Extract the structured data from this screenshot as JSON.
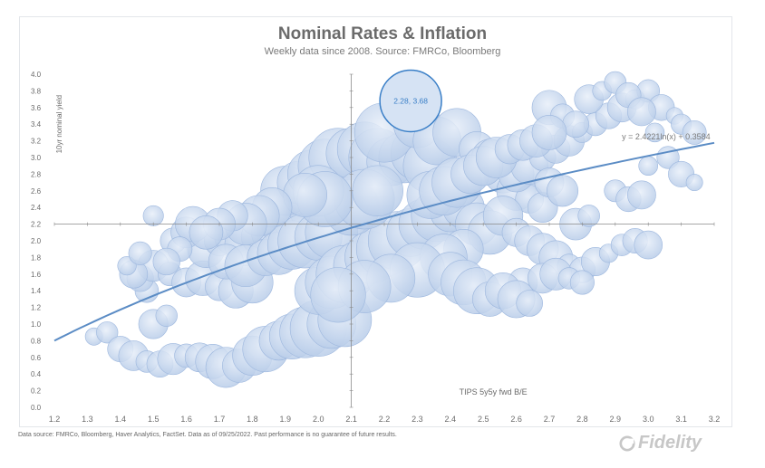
{
  "chart_data": {
    "type": "scatter",
    "title": "Nominal Rates & Inflation",
    "subtitle": "Weekly data since 2008.  Source: FMRCo, Bloomberg",
    "xlabel": "TIPS 5y5y fwd B/E",
    "ylabel": "10yr nominal yield",
    "xlim": [
      1.2,
      3.2
    ],
    "ylim": [
      0.0,
      4.0
    ],
    "x_ticks": [
      "1.2",
      "1.3",
      "1.4",
      "1.5",
      "1.6",
      "1.7",
      "1.8",
      "1.9",
      "2.0",
      "2.1",
      "2.2",
      "2.3",
      "2.4",
      "2.5",
      "2.6",
      "2.7",
      "2.8",
      "2.9",
      "3.0",
      "3.1",
      "3.2"
    ],
    "y_ticks": [
      "0.0",
      "0.2",
      "0.4",
      "0.6",
      "0.8",
      "1.0",
      "1.2",
      "1.4",
      "1.6",
      "1.8",
      "2.0",
      "2.2",
      "2.4",
      "2.6",
      "2.8",
      "3.0",
      "3.2",
      "3.4",
      "3.6",
      "3.8",
      "4.0"
    ],
    "crosshair": {
      "x": 2.1,
      "y": 2.2
    },
    "highlight": {
      "x": 2.28,
      "y": 3.68,
      "label": "2.28,  3.68"
    },
    "trendline": {
      "a": 2.4221,
      "b": 0.3584,
      "equation": "y = 2.4221ln(x) + 0.3584"
    },
    "points": [
      [
        1.32,
        0.85
      ],
      [
        1.36,
        0.9
      ],
      [
        1.4,
        0.7
      ],
      [
        1.44,
        0.62
      ],
      [
        1.48,
        0.55
      ],
      [
        1.52,
        0.52
      ],
      [
        1.56,
        0.58
      ],
      [
        1.6,
        0.62
      ],
      [
        1.64,
        0.6
      ],
      [
        1.68,
        0.55
      ],
      [
        1.72,
        0.48
      ],
      [
        1.76,
        0.5
      ],
      [
        1.8,
        0.62
      ],
      [
        1.84,
        0.7
      ],
      [
        1.88,
        0.8
      ],
      [
        1.92,
        0.85
      ],
      [
        1.96,
        0.9
      ],
      [
        2.0,
        0.95
      ],
      [
        2.04,
        1.0
      ],
      [
        2.08,
        1.05
      ],
      [
        1.5,
        1.0
      ],
      [
        1.54,
        1.1
      ],
      [
        1.48,
        1.4
      ],
      [
        1.46,
        1.55
      ],
      [
        1.5,
        1.7
      ],
      [
        1.55,
        1.6
      ],
      [
        1.6,
        1.5
      ],
      [
        1.65,
        1.55
      ],
      [
        1.7,
        1.45
      ],
      [
        1.75,
        1.4
      ],
      [
        1.8,
        1.5
      ],
      [
        1.66,
        1.9
      ],
      [
        1.7,
        2.0
      ],
      [
        1.74,
        2.05
      ],
      [
        1.78,
        1.95
      ],
      [
        1.82,
        2.05
      ],
      [
        1.86,
        2.1
      ],
      [
        1.9,
        2.2
      ],
      [
        1.94,
        2.3
      ],
      [
        1.98,
        2.4
      ],
      [
        1.72,
        1.75
      ],
      [
        1.78,
        1.7
      ],
      [
        1.84,
        1.8
      ],
      [
        1.88,
        1.85
      ],
      [
        1.92,
        1.95
      ],
      [
        1.96,
        2.0
      ],
      [
        2.0,
        2.05
      ],
      [
        2.04,
        2.1
      ],
      [
        1.9,
        2.6
      ],
      [
        1.94,
        2.7
      ],
      [
        1.98,
        2.8
      ],
      [
        2.02,
        2.9
      ],
      [
        2.06,
        3.0
      ],
      [
        2.1,
        3.05
      ],
      [
        2.14,
        3.1
      ],
      [
        2.18,
        3.0
      ],
      [
        2.22,
        2.95
      ],
      [
        2.26,
        3.0
      ],
      [
        2.3,
        3.05
      ],
      [
        2.34,
        2.9
      ],
      [
        2.0,
        1.4
      ],
      [
        2.04,
        1.5
      ],
      [
        2.08,
        1.6
      ],
      [
        2.12,
        1.7
      ],
      [
        2.16,
        1.8
      ],
      [
        2.2,
        1.9
      ],
      [
        2.24,
        2.0
      ],
      [
        2.28,
        2.1
      ],
      [
        2.32,
        2.2
      ],
      [
        2.36,
        2.3
      ],
      [
        2.4,
        2.35
      ],
      [
        2.44,
        2.4
      ],
      [
        2.48,
        2.2
      ],
      [
        2.52,
        2.1
      ],
      [
        2.44,
        1.9
      ],
      [
        2.38,
        1.8
      ],
      [
        2.3,
        1.65
      ],
      [
        2.22,
        1.55
      ],
      [
        2.14,
        1.45
      ],
      [
        2.06,
        1.35
      ],
      [
        2.2,
        3.3
      ],
      [
        2.3,
        3.4
      ],
      [
        2.36,
        3.2
      ],
      [
        2.42,
        3.3
      ],
      [
        2.48,
        3.1
      ],
      [
        2.52,
        3.0
      ],
      [
        2.56,
        2.8
      ],
      [
        2.6,
        2.6
      ],
      [
        2.64,
        2.5
      ],
      [
        2.68,
        2.4
      ],
      [
        2.56,
        2.3
      ],
      [
        2.6,
        2.1
      ],
      [
        2.64,
        2.0
      ],
      [
        2.68,
        1.9
      ],
      [
        2.72,
        1.8
      ],
      [
        2.76,
        1.7
      ],
      [
        2.8,
        1.65
      ],
      [
        2.84,
        1.75
      ],
      [
        2.88,
        1.85
      ],
      [
        2.92,
        1.95
      ],
      [
        2.96,
        2.0
      ],
      [
        3.0,
        1.95
      ],
      [
        2.62,
        1.5
      ],
      [
        2.68,
        1.55
      ],
      [
        2.72,
        1.6
      ],
      [
        2.76,
        1.55
      ],
      [
        2.8,
        1.5
      ],
      [
        2.6,
        2.8
      ],
      [
        2.64,
        2.9
      ],
      [
        2.68,
        3.0
      ],
      [
        2.72,
        3.1
      ],
      [
        2.76,
        3.2
      ],
      [
        2.8,
        3.3
      ],
      [
        2.84,
        3.4
      ],
      [
        2.88,
        3.5
      ],
      [
        2.92,
        3.6
      ],
      [
        2.96,
        3.7
      ],
      [
        3.0,
        3.8
      ],
      [
        3.04,
        3.6
      ],
      [
        3.08,
        3.5
      ],
      [
        3.1,
        3.4
      ],
      [
        3.14,
        3.3
      ],
      [
        2.7,
        3.6
      ],
      [
        2.74,
        3.5
      ],
      [
        2.78,
        3.4
      ],
      [
        2.82,
        3.7
      ],
      [
        2.86,
        3.8
      ],
      [
        2.9,
        3.9
      ],
      [
        2.94,
        3.75
      ],
      [
        2.98,
        3.55
      ],
      [
        3.02,
        3.3
      ],
      [
        3.06,
        3.0
      ],
      [
        3.1,
        2.8
      ],
      [
        3.14,
        2.7
      ],
      [
        2.9,
        2.6
      ],
      [
        2.94,
        2.5
      ],
      [
        2.98,
        2.55
      ],
      [
        3.0,
        2.9
      ],
      [
        2.7,
        2.7
      ],
      [
        2.74,
        2.6
      ],
      [
        1.5,
        2.3
      ],
      [
        1.56,
        2.0
      ],
      [
        1.6,
        2.1
      ],
      [
        1.62,
        2.2
      ],
      [
        1.58,
        1.9
      ],
      [
        1.54,
        1.75
      ],
      [
        1.44,
        1.6
      ],
      [
        1.42,
        1.7
      ],
      [
        1.46,
        1.85
      ],
      [
        2.1,
        2.4
      ],
      [
        2.14,
        2.5
      ],
      [
        2.18,
        2.6
      ],
      [
        2.0,
        2.6
      ],
      [
        2.02,
        2.5
      ],
      [
        1.96,
        2.55
      ],
      [
        2.4,
        1.6
      ],
      [
        2.44,
        1.5
      ],
      [
        2.48,
        1.4
      ],
      [
        2.52,
        1.3
      ],
      [
        2.56,
        1.4
      ],
      [
        2.6,
        1.3
      ],
      [
        2.64,
        1.25
      ],
      [
        2.34,
        2.55
      ],
      [
        2.38,
        2.6
      ],
      [
        2.42,
        2.7
      ],
      [
        2.46,
        2.8
      ],
      [
        2.5,
        2.9
      ],
      [
        2.54,
        3.0
      ],
      [
        2.58,
        3.1
      ],
      [
        2.62,
        3.15
      ],
      [
        2.66,
        3.2
      ],
      [
        2.7,
        3.3
      ],
      [
        1.86,
        2.4
      ],
      [
        1.82,
        2.3
      ],
      [
        1.78,
        2.2
      ],
      [
        1.74,
        2.3
      ],
      [
        1.7,
        2.2
      ],
      [
        1.66,
        2.1
      ],
      [
        2.78,
        2.2
      ],
      [
        2.82,
        2.3
      ]
    ]
  },
  "footnote": "Data source: FMRCo, Bloomberg, Haver Analytics, FactSet. Data as of 09/25/2022. Past performance is no guarantee of future results.",
  "logo_text": "Fidelity",
  "colors": {
    "bubble_fill": "#c5d6ee",
    "bubble_stroke": "#9db7de",
    "trendline": "#5b8cc5",
    "highlight": "#3a7fc7",
    "axis_text": "#6b6b6b"
  }
}
